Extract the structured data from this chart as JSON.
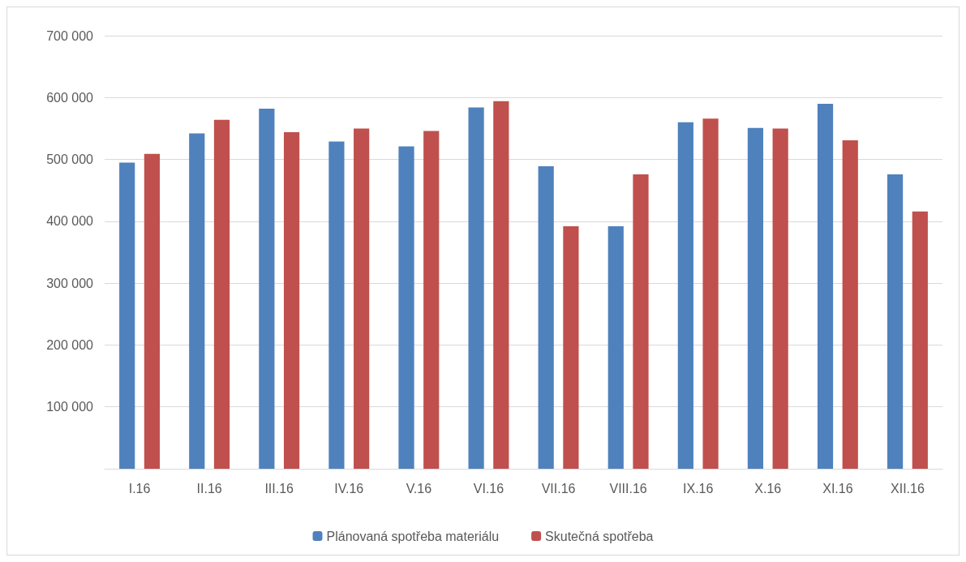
{
  "chart_data": {
    "type": "bar",
    "categories": [
      "I.16",
      "II.16",
      "III.16",
      "IV.16",
      "V.16",
      "VI.16",
      "VII.16",
      "VIII.16",
      "IX.16",
      "X.16",
      "XI.16",
      "XII.16"
    ],
    "series": [
      {
        "name": "Plánovaná spotřeba materiálu",
        "color": "#4f81bd",
        "values": [
          495000,
          542000,
          582000,
          529000,
          521000,
          584000,
          489000,
          392000,
          560000,
          551000,
          590000,
          476000
        ]
      },
      {
        "name": "Skutečná spotřeba",
        "color": "#c0504d",
        "values": [
          509000,
          564000,
          544000,
          550000,
          546000,
          594000,
          392000,
          476000,
          566000,
          550000,
          531000,
          416000
        ]
      }
    ],
    "ylim": [
      0,
      700000
    ],
    "yticks": [
      {
        "value": 0,
        "label": null
      },
      {
        "value": 100000,
        "label": "100 000"
      },
      {
        "value": 200000,
        "label": "200 000"
      },
      {
        "value": 300000,
        "label": "300 000"
      },
      {
        "value": 400000,
        "label": "400 000"
      },
      {
        "value": 500000,
        "label": "500 000"
      },
      {
        "value": 600000,
        "label": "600 000"
      },
      {
        "value": 700000,
        "label": "700 000"
      }
    ],
    "grid": "y",
    "legend": "bottom"
  }
}
